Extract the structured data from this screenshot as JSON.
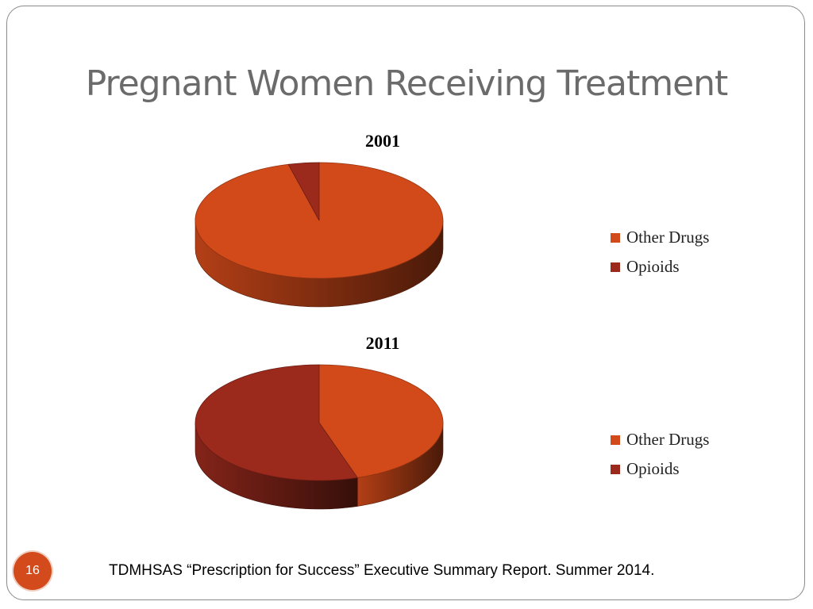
{
  "slide": {
    "title": "Pregnant Women Receiving Treatment",
    "page_number": "16",
    "citation": "TDMHSAS “Prescription for Success” Executive Summary Report. Summer 2014."
  },
  "chart_data": [
    {
      "type": "pie",
      "title": "2001",
      "categories": [
        "Other Drugs",
        "Opioids"
      ],
      "values": [
        96,
        4
      ],
      "colors": [
        "#d24a1a",
        "#9b2a1d"
      ],
      "legend": "right",
      "style": "3d"
    },
    {
      "type": "pie",
      "title": "2011",
      "categories": [
        "Other Drugs",
        "Opioids"
      ],
      "values": [
        45,
        55
      ],
      "colors": [
        "#d24a1a",
        "#9b2a1d"
      ],
      "legend": "right",
      "style": "3d"
    }
  ]
}
